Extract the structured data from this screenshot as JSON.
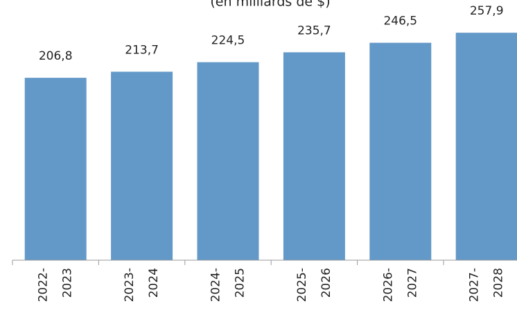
{
  "chart_data": {
    "type": "bar",
    "subtitle": "(en milliards de $)",
    "categories": [
      [
        "2022-",
        "2023"
      ],
      [
        "2023-",
        "2024"
      ],
      [
        "2024-",
        "2025"
      ],
      [
        "2025-",
        "2026"
      ],
      [
        "2026-",
        "2027"
      ],
      [
        "2027-",
        "2028"
      ]
    ],
    "values": [
      206.8,
      213.7,
      224.5,
      235.7,
      246.5,
      257.9
    ],
    "value_labels": [
      "206,8",
      "213,7",
      "224,5",
      "235,7",
      "246,5",
      "257,9"
    ],
    "color": "#6399c8",
    "ylim": [
      0,
      295
    ]
  }
}
